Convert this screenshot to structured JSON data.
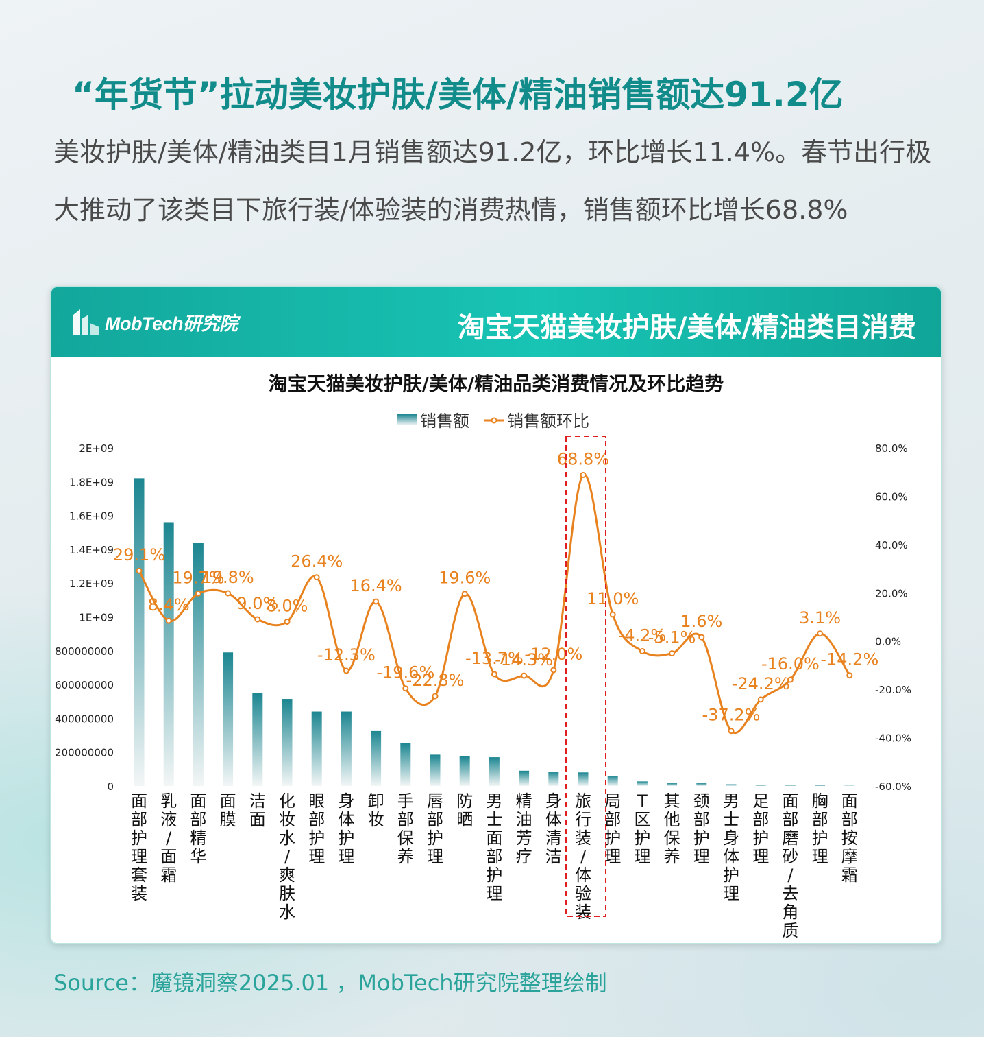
{
  "header": {
    "title": "“年货节”拉动美妆护肤/美体/精油销售额达91.2亿",
    "subtitle": "美妆护肤/美体/精油类目1月销售额达91.2亿，环比增长11.4%。春节出行极大推动了该类目下旅行装/体验装的消费热情，销售额环比增长68.8%"
  },
  "panel": {
    "logo_text": "MobTech研究院",
    "title": "淘宝天猫美妆护肤/美体/精油类目消费"
  },
  "colors": {
    "accent": "#118c8a",
    "bar": "#1e8a93",
    "line": "#e8821f",
    "highlight_box": "#e02020"
  },
  "chart_data": {
    "type": "bar",
    "title": "淘宝天猫美妆护肤/美体/精油品类消费情况及环比趋势",
    "legend_position": "top",
    "categories": [
      "面部护理套装",
      "乳液/面霜",
      "面部精华",
      "面膜",
      "洁面",
      "化妆水/爽肤水",
      "眼部护理",
      "身体护理",
      "卸妆",
      "手部保养",
      "唇部护理",
      "防晒",
      "男士面部护理",
      "精油芳疗",
      "身体清洁",
      "旅行装/体验装",
      "局部护理",
      "T区护理",
      "其他保养",
      "颈部护理",
      "男士身体护理",
      "足部护理",
      "面部磨砂/去角质",
      "胸部护理",
      "面部按摩霜"
    ],
    "series": [
      {
        "name": "销售额",
        "type": "bar",
        "axis": "left",
        "values": [
          1820000000,
          1560000000,
          1440000000,
          790000000,
          550000000,
          515000000,
          440000000,
          440000000,
          325000000,
          255000000,
          185000000,
          175000000,
          170000000,
          90000000,
          85000000,
          80000000,
          60000000,
          27000000,
          16000000,
          16000000,
          10000000,
          5000000,
          5000000,
          4000000,
          2000000
        ]
      },
      {
        "name": "销售额环比",
        "type": "line",
        "axis": "right",
        "values": [
          29.1,
          8.4,
          19.7,
          19.8,
          9.0,
          8.0,
          26.4,
          -12.3,
          16.4,
          -19.6,
          -22.8,
          19.6,
          -13.7,
          -14.3,
          -12.0,
          68.8,
          11.0,
          -4.2,
          -5.1,
          1.6,
          -37.2,
          -24.2,
          -16.0,
          3.1,
          -14.2
        ],
        "labels": [
          "29.1%",
          "8.4%",
          "19.7%",
          "19.8%",
          "9.0%",
          "8.0%",
          "26.4%",
          "-12.3%",
          "16.4%",
          "-19.6%",
          "-22.8%",
          "19.6%",
          "-13.7%",
          "-14.3%",
          "-12.0%",
          "68.8%",
          "11.0%",
          "-4.2%",
          "-5.1%",
          "1.6%",
          "-37.2%",
          "-24.2%",
          "-16.0%",
          "3.1%",
          "-14.2%"
        ]
      }
    ],
    "y_left": {
      "range": [
        0,
        2000000000
      ],
      "tick_values": [
        0,
        200000000,
        400000000,
        600000000,
        800000000,
        1000000000,
        1200000000,
        1400000000,
        1600000000,
        1800000000,
        2000000000
      ],
      "tick_labels": [
        "0",
        "200000000",
        "400000000",
        "600000000",
        "800000000",
        "1E+09",
        "1.2E+09",
        "1.4E+09",
        "1.6E+09",
        "1.8E+09",
        "2E+09"
      ]
    },
    "y_right": {
      "range": [
        -60,
        80
      ],
      "tick_values": [
        -60,
        -40,
        -20,
        0,
        20,
        40,
        60,
        80
      ],
      "tick_labels": [
        "-60.0%",
        "-40.0%",
        "-20.0%",
        "0.0%",
        "20.0%",
        "40.0%",
        "60.0%",
        "80.0%"
      ]
    },
    "highlight_category": "旅行装/体验装",
    "grid": false
  },
  "footer": {
    "source": "Source：魔镜洞察2025.01 ，MobTech研究院整理绘制"
  }
}
